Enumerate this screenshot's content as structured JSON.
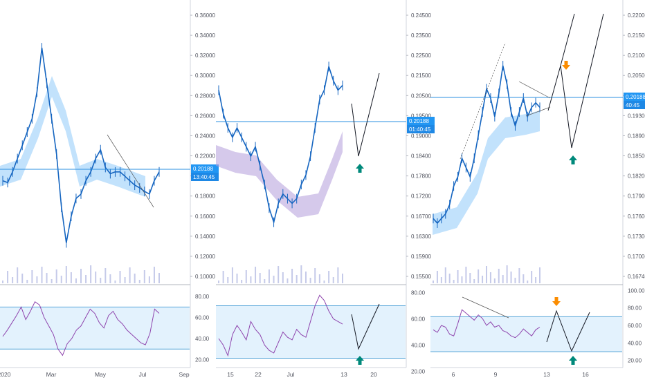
{
  "colors": {
    "price_line": "#2a8fe0",
    "tag_bg": "#2196f3",
    "rsi_line": "#8e44ad",
    "rsi_band_fill": "#e3f2fd",
    "rsi_band_line": "#5aa7d9",
    "cloud_purple": "#b39ddb",
    "cloud_blue": "#90caf9",
    "candle": "#1565c0",
    "arrow_up": "#00897b",
    "arrow_down": "#fb8c00",
    "volume": "#c5cae9"
  },
  "chart_data": [
    {
      "type": "line",
      "panel": "left",
      "y_axis_ticks": [
        "0.36000",
        "0.34000",
        "0.32000",
        "0.30000",
        "0.28000",
        "0.26000",
        "0.24000",
        "0.22000",
        "0.20000",
        "0.18000",
        "0.16000",
        "0.14000",
        "0.12000",
        "0.10000"
      ],
      "ylim": [
        0.09,
        0.372
      ],
      "x_axis_ticks": [
        "2020",
        "Mar",
        "May",
        "Jul",
        "Sep"
      ],
      "price_tag": {
        "value": "0.20188",
        "countdown": "13:40:45",
        "price": 0.20188
      },
      "series": [
        {
          "values": [
            0.19,
            0.188,
            0.2,
            0.215,
            0.23,
            0.245,
            0.26,
            0.29,
            0.34,
            0.3,
            0.26,
            0.22,
            0.16,
            0.12,
            0.15,
            0.17,
            0.175,
            0.19,
            0.2,
            0.215,
            0.225,
            0.205,
            0.198,
            0.2,
            0.2,
            0.195,
            0.19,
            0.185,
            0.182,
            0.178,
            0.175,
            0.19,
            0.2
          ]
        }
      ],
      "rsi": {
        "y_axis_ticks": [
          "80.00",
          "60.00",
          "40.00",
          "20.00"
        ],
        "ylim": [
          15,
          90
        ],
        "band": [
          30,
          70
        ],
        "values": [
          42,
          48,
          55,
          62,
          70,
          58,
          66,
          75,
          72,
          60,
          52,
          44,
          30,
          24,
          35,
          40,
          48,
          52,
          60,
          68,
          64,
          55,
          50,
          62,
          66,
          58,
          54,
          48,
          44,
          40,
          36,
          34,
          45,
          68,
          64
        ]
      }
    },
    {
      "type": "line",
      "panel": "middle",
      "y_axis_ticks": [
        "0.24500",
        "0.23500",
        "0.22500",
        "0.21500",
        "0.20500",
        "0.19500",
        "0.19000",
        "0.18400",
        "0.17800",
        "0.17200",
        "0.16700",
        "0.16300",
        "0.15900",
        "0.15500"
      ],
      "x_axis_ticks": [
        "15",
        "22",
        "Jul",
        "13",
        "20"
      ],
      "price_tag": {
        "value": "0.20188",
        "countdown": "01:40:45"
      },
      "series": [
        {
          "values": [
            0.2,
            0.195,
            0.192,
            0.19,
            0.192,
            0.19,
            0.188,
            0.186,
            0.188,
            0.184,
            0.18,
            0.175,
            0.172,
            0.176,
            0.178,
            0.177,
            0.176,
            0.177,
            0.18,
            0.182,
            0.186,
            0.192,
            0.198,
            0.2,
            0.205,
            0.202,
            0.2,
            0.201
          ]
        }
      ],
      "rsi": {
        "y_axis_ticks": [
          "80.00",
          "60.00",
          "40.00",
          "20.00"
        ],
        "ylim": [
          25,
          85
        ],
        "band": [
          30,
          70
        ],
        "values": [
          45,
          40,
          32,
          48,
          55,
          50,
          44,
          58,
          52,
          48,
          40,
          36,
          34,
          42,
          50,
          46,
          44,
          52,
          48,
          46,
          58,
          70,
          78,
          74,
          66,
          60,
          58,
          56
        ]
      }
    },
    {
      "type": "line",
      "panel": "right",
      "y_axis_ticks": [
        "0.22000",
        "0.21500",
        "0.21000",
        "0.20500",
        "0.19700",
        "0.19300",
        "0.18900",
        "0.18500",
        "0.18200",
        "0.17900",
        "0.17600",
        "0.17300",
        "0.17000",
        "0.16740"
      ],
      "x_axis_ticks": [
        "6",
        "9",
        "13",
        "16"
      ],
      "price_tag": {
        "value": "0.20188",
        "countdown": "40:45"
      },
      "series": [
        {
          "values": [
            0.177,
            0.176,
            0.177,
            0.178,
            0.18,
            0.184,
            0.186,
            0.19,
            0.188,
            0.186,
            0.19,
            0.195,
            0.2,
            0.205,
            0.203,
            0.199,
            0.204,
            0.21,
            0.206,
            0.2,
            0.197,
            0.2,
            0.203,
            0.199,
            0.201,
            0.202,
            0.201
          ]
        }
      ],
      "rsi": {
        "y_axis_ticks": [
          "100.00",
          "80.00",
          "60.00",
          "40.00",
          "20.00"
        ],
        "ylim": [
          15,
          105
        ],
        "band": [
          30,
          70
        ],
        "values": [
          55,
          52,
          60,
          58,
          50,
          48,
          62,
          78,
          74,
          70,
          66,
          72,
          68,
          60,
          64,
          58,
          60,
          54,
          52,
          48,
          46,
          50,
          56,
          52,
          48,
          55,
          58
        ]
      }
    }
  ]
}
